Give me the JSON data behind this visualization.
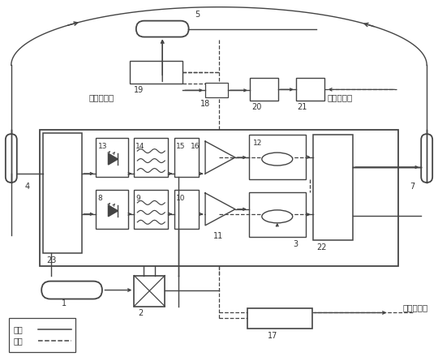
{
  "bg_color": "#ffffff",
  "lc": "#444444",
  "tc": "#333333",
  "text_cw": "顺时针回路",
  "text_ccw": "逆时针回路",
  "text_angular": "角速度输出",
  "legend_optical": "光路",
  "legend_circuit": "申路",
  "labels": {
    "1": "1",
    "2": "2",
    "3": "3",
    "4": "4",
    "5": "5",
    "7": "7",
    "8": "8",
    "9": "9",
    "10": "10",
    "11": "11",
    "12": "12",
    "13": "13",
    "14": "14",
    "15": "15",
    "16": "16",
    "17": "17",
    "18": "18",
    "19": "19",
    "20": "20",
    "21": "21",
    "22": "22",
    "23": "23"
  }
}
